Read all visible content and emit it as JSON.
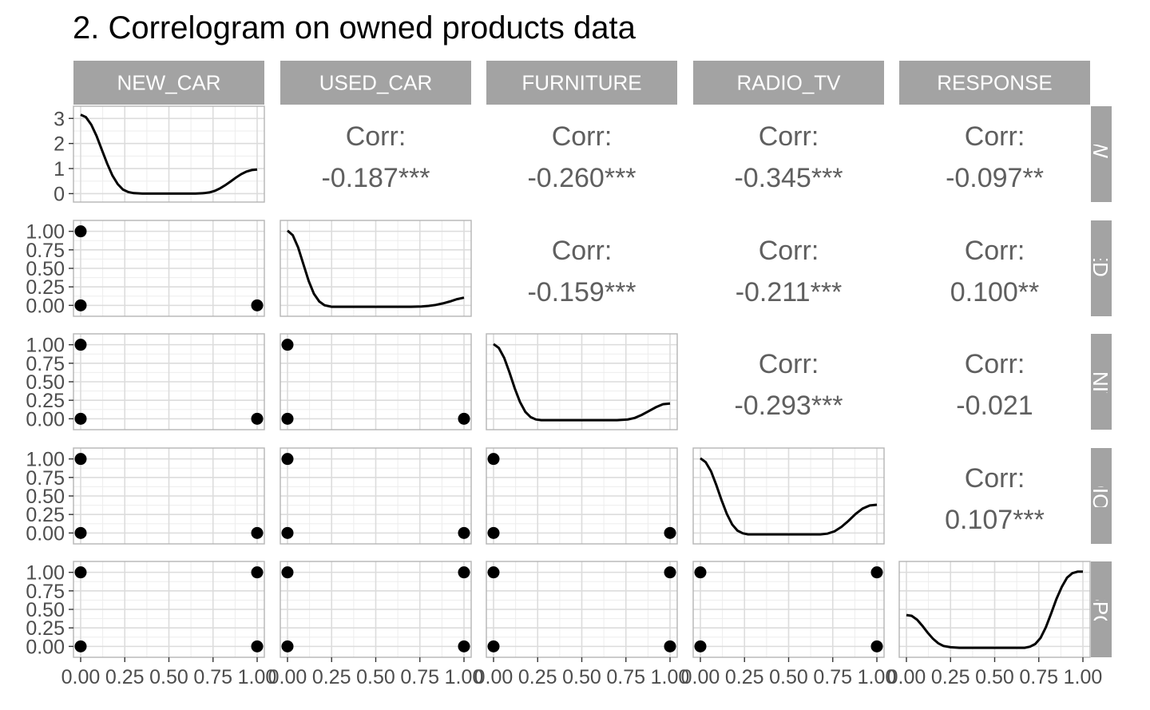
{
  "chart_data": {
    "type": "scatter",
    "title": "2. Correlogram on owned products data",
    "variables": [
      "NEW_CAR",
      "USED_CAR",
      "FURNITURE",
      "RADIO_TV",
      "RESPONSE"
    ],
    "row_strip_labels": [
      "NEW_CA",
      "USED_CA",
      "FURNITUR",
      "RADIO_TV",
      "RESPONS"
    ],
    "corr_label": "Corr:",
    "correlations": [
      {
        "row": 0,
        "col": 1,
        "label": "-0.187***"
      },
      {
        "row": 0,
        "col": 2,
        "label": "-0.260***"
      },
      {
        "row": 0,
        "col": 3,
        "label": "-0.345***"
      },
      {
        "row": 0,
        "col": 4,
        "label": "-0.097**"
      },
      {
        "row": 1,
        "col": 2,
        "label": "-0.159***"
      },
      {
        "row": 1,
        "col": 3,
        "label": "-0.211***"
      },
      {
        "row": 1,
        "col": 4,
        "label": "0.100**"
      },
      {
        "row": 2,
        "col": 3,
        "label": "-0.293***"
      },
      {
        "row": 2,
        "col": 4,
        "label": "-0.021"
      },
      {
        "row": 3,
        "col": 4,
        "label": "0.107***"
      }
    ],
    "x_ticks": [
      "0.00",
      "0.25",
      "0.50",
      "0.75",
      "1.00"
    ],
    "x_range": [
      0,
      1
    ],
    "y_ticks_first_row": [
      "0",
      "1",
      "2",
      "3"
    ],
    "y_range_first_row": [
      -0.05,
      3.2
    ],
    "y_ticks": [
      "0.00",
      "0.25",
      "0.50",
      "0.75",
      "1.00"
    ],
    "y_range": [
      0,
      1
    ],
    "scatter_points": [
      {
        "row": 1,
        "col": 0,
        "points": [
          [
            0,
            1
          ],
          [
            0,
            0
          ],
          [
            1,
            0
          ]
        ]
      },
      {
        "row": 2,
        "col": 0,
        "points": [
          [
            0,
            1
          ],
          [
            0,
            0
          ],
          [
            1,
            0
          ]
        ]
      },
      {
        "row": 2,
        "col": 1,
        "points": [
          [
            0,
            1
          ],
          [
            0,
            0
          ],
          [
            1,
            0
          ]
        ]
      },
      {
        "row": 3,
        "col": 0,
        "points": [
          [
            0,
            1
          ],
          [
            0,
            0
          ],
          [
            1,
            0
          ]
        ]
      },
      {
        "row": 3,
        "col": 1,
        "points": [
          [
            0,
            1
          ],
          [
            0,
            0
          ],
          [
            1,
            0
          ]
        ]
      },
      {
        "row": 3,
        "col": 2,
        "points": [
          [
            0,
            1
          ],
          [
            0,
            0
          ],
          [
            1,
            0
          ]
        ]
      },
      {
        "row": 4,
        "col": 0,
        "points": [
          [
            0,
            1
          ],
          [
            0,
            0
          ],
          [
            1,
            1
          ],
          [
            1,
            0
          ]
        ]
      },
      {
        "row": 4,
        "col": 1,
        "points": [
          [
            0,
            1
          ],
          [
            0,
            0
          ],
          [
            1,
            1
          ],
          [
            1,
            0
          ]
        ]
      },
      {
        "row": 4,
        "col": 2,
        "points": [
          [
            0,
            1
          ],
          [
            0,
            0
          ],
          [
            1,
            1
          ],
          [
            1,
            0
          ]
        ]
      },
      {
        "row": 4,
        "col": 3,
        "points": [
          [
            0,
            1
          ],
          [
            0,
            0
          ],
          [
            1,
            1
          ],
          [
            1,
            0
          ]
        ]
      }
    ],
    "densities": [
      {
        "variable": "NEW_CAR",
        "points": [
          [
            0.0,
            3.15
          ],
          [
            0.03,
            3.05
          ],
          [
            0.06,
            2.75
          ],
          [
            0.09,
            2.3
          ],
          [
            0.12,
            1.75
          ],
          [
            0.15,
            1.2
          ],
          [
            0.18,
            0.72
          ],
          [
            0.21,
            0.38
          ],
          [
            0.24,
            0.16
          ],
          [
            0.27,
            0.06
          ],
          [
            0.3,
            0.02
          ],
          [
            0.35,
            0.0
          ],
          [
            0.5,
            0.0
          ],
          [
            0.65,
            0.0
          ],
          [
            0.7,
            0.02
          ],
          [
            0.73,
            0.05
          ],
          [
            0.76,
            0.11
          ],
          [
            0.79,
            0.21
          ],
          [
            0.82,
            0.34
          ],
          [
            0.85,
            0.49
          ],
          [
            0.88,
            0.64
          ],
          [
            0.91,
            0.78
          ],
          [
            0.94,
            0.88
          ],
          [
            0.97,
            0.94
          ],
          [
            1.0,
            0.96
          ]
        ]
      },
      {
        "variable": "USED_CAR",
        "points": [
          [
            0.0,
            1.0
          ],
          [
            0.03,
            0.94
          ],
          [
            0.06,
            0.78
          ],
          [
            0.09,
            0.56
          ],
          [
            0.12,
            0.34
          ],
          [
            0.15,
            0.17
          ],
          [
            0.18,
            0.07
          ],
          [
            0.21,
            0.02
          ],
          [
            0.25,
            0.0
          ],
          [
            0.5,
            0.0
          ],
          [
            0.7,
            0.0
          ],
          [
            0.76,
            0.005
          ],
          [
            0.8,
            0.012
          ],
          [
            0.84,
            0.025
          ],
          [
            0.88,
            0.045
          ],
          [
            0.92,
            0.07
          ],
          [
            0.96,
            0.1
          ],
          [
            1.0,
            0.12
          ]
        ]
      },
      {
        "variable": "FURNITURE",
        "points": [
          [
            0.0,
            1.0
          ],
          [
            0.03,
            0.95
          ],
          [
            0.06,
            0.82
          ],
          [
            0.09,
            0.63
          ],
          [
            0.12,
            0.42
          ],
          [
            0.15,
            0.24
          ],
          [
            0.18,
            0.11
          ],
          [
            0.21,
            0.04
          ],
          [
            0.24,
            0.01
          ],
          [
            0.27,
            0.0
          ],
          [
            0.5,
            0.0
          ],
          [
            0.7,
            0.0
          ],
          [
            0.76,
            0.01
          ],
          [
            0.8,
            0.03
          ],
          [
            0.84,
            0.07
          ],
          [
            0.88,
            0.12
          ],
          [
            0.92,
            0.17
          ],
          [
            0.96,
            0.21
          ],
          [
            1.0,
            0.22
          ]
        ]
      },
      {
        "variable": "RADIO_TV",
        "points": [
          [
            0.0,
            1.0
          ],
          [
            0.03,
            0.95
          ],
          [
            0.06,
            0.83
          ],
          [
            0.09,
            0.65
          ],
          [
            0.12,
            0.45
          ],
          [
            0.15,
            0.27
          ],
          [
            0.18,
            0.13
          ],
          [
            0.21,
            0.05
          ],
          [
            0.24,
            0.015
          ],
          [
            0.27,
            0.0
          ],
          [
            0.5,
            0.0
          ],
          [
            0.68,
            0.0
          ],
          [
            0.72,
            0.01
          ],
          [
            0.76,
            0.04
          ],
          [
            0.8,
            0.1
          ],
          [
            0.84,
            0.18
          ],
          [
            0.88,
            0.27
          ],
          [
            0.92,
            0.34
          ],
          [
            0.96,
            0.38
          ],
          [
            1.0,
            0.39
          ]
        ]
      },
      {
        "variable": "RESPONSE",
        "points": [
          [
            0.0,
            0.43
          ],
          [
            0.03,
            0.42
          ],
          [
            0.06,
            0.37
          ],
          [
            0.09,
            0.29
          ],
          [
            0.12,
            0.2
          ],
          [
            0.15,
            0.12
          ],
          [
            0.18,
            0.06
          ],
          [
            0.21,
            0.025
          ],
          [
            0.25,
            0.008
          ],
          [
            0.3,
            0.0
          ],
          [
            0.5,
            0.0
          ],
          [
            0.67,
            0.0
          ],
          [
            0.7,
            0.015
          ],
          [
            0.73,
            0.05
          ],
          [
            0.76,
            0.13
          ],
          [
            0.79,
            0.27
          ],
          [
            0.82,
            0.45
          ],
          [
            0.85,
            0.64
          ],
          [
            0.88,
            0.8
          ],
          [
            0.91,
            0.92
          ],
          [
            0.94,
            0.98
          ],
          [
            0.97,
            1.0
          ],
          [
            1.0,
            1.0
          ]
        ]
      }
    ],
    "grid": true
  }
}
